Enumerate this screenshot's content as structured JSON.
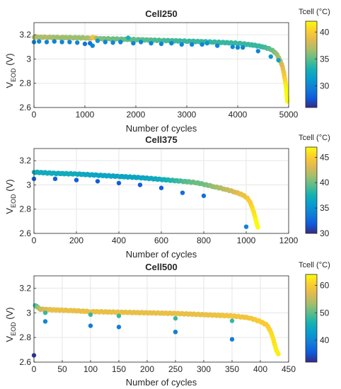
{
  "chart_data": [
    {
      "type": "scatter",
      "title": "Cell250",
      "xlabel": "Number of cycles",
      "ylabel_main": "V",
      "ylabel_sub": "EOD",
      "ylabel_unit": " (V)",
      "xlim": [
        0,
        5000
      ],
      "ylim": [
        2.6,
        3.3
      ],
      "xticks": [
        0,
        1000,
        2000,
        3000,
        4000,
        5000
      ],
      "yticks": [
        2.6,
        2.8,
        3.0,
        3.2
      ],
      "xtick_labels": [
        "0",
        "1000",
        "2000",
        "3000",
        "4000",
        "5000"
      ],
      "ytick_labels": [
        "2.6",
        "2.8",
        "3",
        "3.2"
      ],
      "grid": true,
      "colorbar": {
        "label": "Tcell (°C)",
        "min": 26,
        "max": 42,
        "ticks": [
          30,
          35,
          40
        ],
        "tick_labels": [
          "30",
          "35",
          "40"
        ]
      },
      "series": [
        {
          "values": [
            [
              0,
              3.18,
              37
            ],
            [
              250,
              3.179,
              37
            ],
            [
              500,
              3.177,
              36.5
            ],
            [
              750,
              3.176,
              36.5
            ],
            [
              1000,
              3.174,
              36.5
            ],
            [
              1100,
              3.172,
              37
            ],
            [
              1180,
              3.178,
              40
            ],
            [
              1250,
              3.168,
              36
            ],
            [
              1500,
              3.166,
              35.5
            ],
            [
              2000,
              3.16,
              35
            ],
            [
              2500,
              3.153,
              34.5
            ],
            [
              3000,
              3.147,
              34
            ],
            [
              3500,
              3.14,
              34
            ],
            [
              4000,
              3.13,
              34
            ],
            [
              4300,
              3.115,
              34
            ],
            [
              4500,
              3.1,
              34
            ],
            [
              4650,
              3.08,
              35
            ],
            [
              4750,
              3.05,
              36
            ],
            [
              4820,
              3.0,
              37
            ],
            [
              4870,
              2.95,
              38
            ],
            [
              4900,
              2.9,
              39
            ],
            [
              4920,
              2.85,
              40
            ],
            [
              4940,
              2.8,
              41
            ],
            [
              4955,
              2.75,
              42
            ],
            [
              4965,
              2.7,
              42
            ],
            [
              4975,
              2.65,
              42
            ]
          ]
        },
        {
          "values": [
            [
              0,
              3.14,
              30
            ],
            [
              100,
              3.145,
              30
            ],
            [
              250,
              3.14,
              30
            ],
            [
              400,
              3.145,
              30
            ],
            [
              550,
              3.14,
              30
            ],
            [
              700,
              3.14,
              30
            ],
            [
              850,
              3.135,
              30
            ],
            [
              1000,
              3.125,
              29
            ],
            [
              1100,
              3.13,
              29
            ],
            [
              1150,
              3.11,
              30
            ],
            [
              1250,
              3.15,
              31
            ],
            [
              1400,
              3.14,
              30
            ],
            [
              1550,
              3.135,
              30
            ],
            [
              1700,
              3.14,
              30
            ],
            [
              1850,
              3.175,
              33
            ],
            [
              1950,
              3.13,
              30
            ],
            [
              2100,
              3.14,
              30
            ],
            [
              2300,
              3.13,
              30
            ],
            [
              2500,
              3.125,
              30
            ],
            [
              2700,
              3.13,
              30
            ],
            [
              2900,
              3.12,
              30
            ],
            [
              3100,
              3.12,
              30
            ],
            [
              3300,
              3.12,
              30
            ],
            [
              3400,
              3.13,
              31
            ],
            [
              3600,
              3.11,
              30
            ],
            [
              3900,
              3.1,
              30
            ],
            [
              4000,
              3.095,
              30
            ],
            [
              4100,
              3.095,
              30
            ],
            [
              4400,
              3.065,
              30
            ],
            [
              4650,
              3.02,
              31
            ],
            [
              4800,
              2.99,
              32
            ]
          ]
        }
      ]
    },
    {
      "type": "scatter",
      "title": "Cell375",
      "xlabel": "Number of cycles",
      "ylabel_main": "V",
      "ylabel_sub": "EOD",
      "ylabel_unit": " (V)",
      "xlim": [
        0,
        1200
      ],
      "ylim": [
        2.6,
        3.3
      ],
      "xticks": [
        0,
        200,
        400,
        600,
        800,
        1000,
        1200
      ],
      "yticks": [
        2.6,
        2.8,
        3.0,
        3.2
      ],
      "xtick_labels": [
        "0",
        "200",
        "400",
        "600",
        "800",
        "1000",
        "1200"
      ],
      "ytick_labels": [
        "2.6",
        "2.8",
        "3",
        "3.2"
      ],
      "grid": true,
      "colorbar": {
        "label": "Tcell (°C)",
        "min": 30,
        "max": 47,
        "ticks": [
          30,
          35,
          40,
          45
        ],
        "tick_labels": [
          "30",
          "35",
          "40",
          "45"
        ]
      },
      "series": [
        {
          "values": [
            [
              0,
              3.105,
              37
            ],
            [
              100,
              3.095,
              37
            ],
            [
              200,
              3.09,
              37
            ],
            [
              300,
              3.08,
              36.5
            ],
            [
              400,
              3.07,
              36.5
            ],
            [
              500,
              3.06,
              36.5
            ],
            [
              600,
              3.045,
              37
            ],
            [
              700,
              3.03,
              39
            ],
            [
              760,
              3.02,
              40
            ],
            [
              800,
              3.005,
              40
            ],
            [
              850,
              2.985,
              41
            ],
            [
              900,
              2.965,
              42
            ],
            [
              950,
              2.94,
              43
            ],
            [
              980,
              2.92,
              44
            ],
            [
              1000,
              2.9,
              44
            ],
            [
              1015,
              2.87,
              45
            ],
            [
              1025,
              2.83,
              45
            ],
            [
              1033,
              2.79,
              46
            ],
            [
              1040,
              2.75,
              46
            ],
            [
              1047,
              2.7,
              47
            ],
            [
              1055,
              2.65,
              47
            ]
          ]
        },
        {
          "values": [
            [
              0,
              3.05,
              32
            ],
            [
              100,
              3.05,
              32
            ],
            [
              200,
              3.04,
              32
            ],
            [
              300,
              3.03,
              32
            ],
            [
              400,
              3.015,
              32
            ],
            [
              500,
              3.0,
              32
            ],
            [
              600,
              2.975,
              32
            ],
            [
              700,
              2.935,
              33
            ],
            [
              800,
              2.91,
              33
            ],
            [
              1000,
              2.655,
              34
            ]
          ]
        }
      ]
    },
    {
      "type": "scatter",
      "title": "Cell500",
      "xlabel": "Number of cycles",
      "ylabel_main": "V",
      "ylabel_sub": "EOD",
      "ylabel_unit": " (V)",
      "xlim": [
        0,
        450
      ],
      "ylim": [
        2.6,
        3.3
      ],
      "xticks": [
        0,
        50,
        100,
        150,
        200,
        250,
        300,
        350,
        400,
        450
      ],
      "yticks": [
        2.6,
        2.8,
        3.0,
        3.2
      ],
      "xtick_labels": [
        "0",
        "50",
        "100",
        "150",
        "200",
        "250",
        "300",
        "350",
        "400",
        "450"
      ],
      "ytick_labels": [
        "2.6",
        "2.8",
        "3",
        "3.2"
      ],
      "grid": true,
      "colorbar": {
        "label": "Tcell (°C)",
        "min": 32,
        "max": 64,
        "ticks": [
          40,
          50,
          60
        ],
        "tick_labels": [
          "40",
          "50",
          "60"
        ]
      },
      "series": [
        {
          "values": [
            [
              2,
              3.06,
              47
            ],
            [
              5,
              3.055,
              50
            ],
            [
              10,
              3.03,
              55
            ],
            [
              30,
              3.025,
              58
            ],
            [
              60,
              3.02,
              58
            ],
            [
              100,
              3.01,
              58
            ],
            [
              150,
              3.005,
              58
            ],
            [
              200,
              3.0,
              58
            ],
            [
              250,
              2.995,
              58
            ],
            [
              300,
              2.985,
              58
            ],
            [
              350,
              2.975,
              59
            ],
            [
              380,
              2.96,
              59
            ],
            [
              400,
              2.93,
              60
            ],
            [
              412,
              2.9,
              60
            ],
            [
              418,
              2.85,
              61
            ],
            [
              422,
              2.8,
              62
            ],
            [
              425,
              2.75,
              62
            ],
            [
              428,
              2.7,
              63
            ],
            [
              432,
              2.665,
              63
            ]
          ]
        },
        {
          "values": [
            [
              0,
              2.655,
              33
            ],
            [
              20,
              3.0,
              48
            ],
            [
              20,
              2.93,
              40
            ],
            [
              100,
              2.985,
              48
            ],
            [
              100,
              2.895,
              39
            ],
            [
              150,
              2.975,
              48
            ],
            [
              150,
              2.885,
              39
            ],
            [
              250,
              2.955,
              48
            ],
            [
              250,
              2.845,
              39
            ],
            [
              350,
              2.935,
              48
            ],
            [
              350,
              2.785,
              39
            ]
          ]
        }
      ]
    }
  ]
}
